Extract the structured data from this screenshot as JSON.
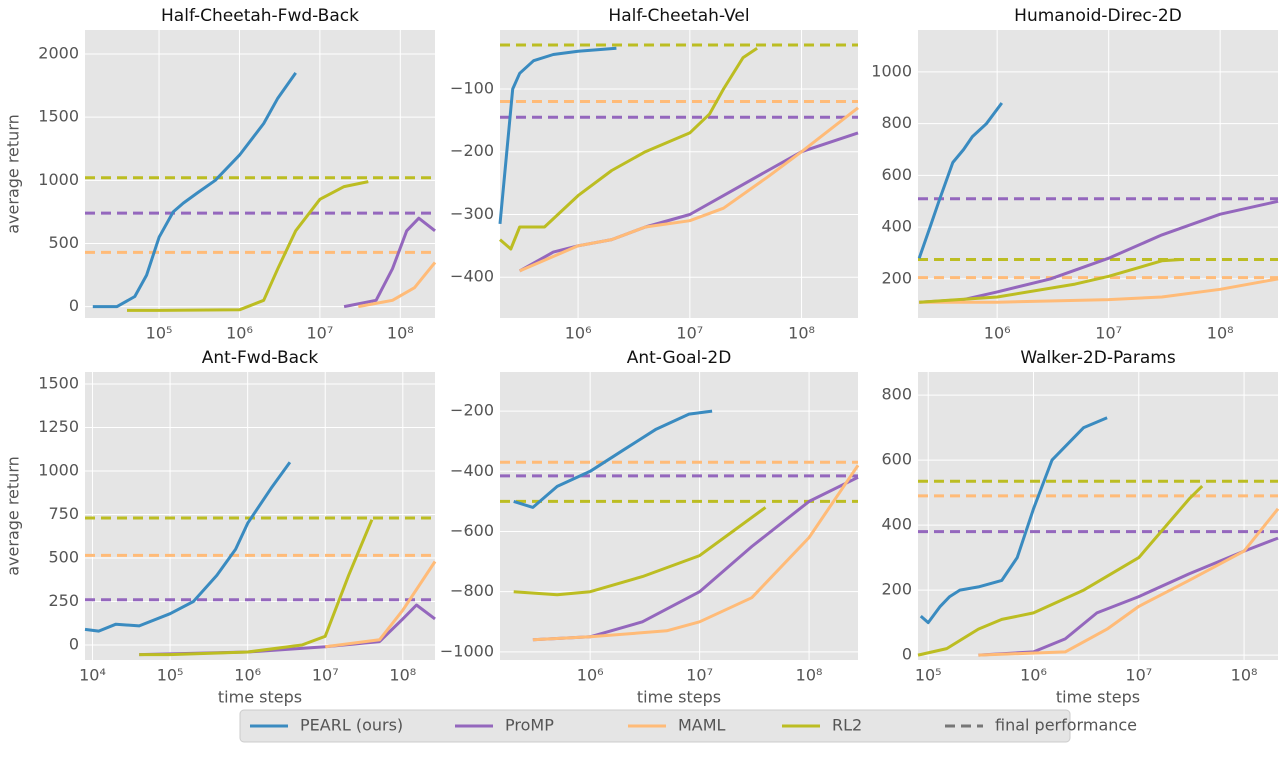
{
  "legend_final": "final performance",
  "chart_data": [
    {
      "type": "line",
      "title": "Half-Cheetah-Fwd-Back",
      "ylabel": "average return",
      "xscale": "log",
      "xlim": [
        12000,
        270000000
      ],
      "ylim": [
        -90,
        2190
      ],
      "xticks": [
        {
          "value": 100000,
          "label": "10⁵"
        },
        {
          "value": 1000000,
          "label": "10⁶"
        },
        {
          "value": 10000000,
          "label": "10⁷"
        },
        {
          "value": 100000000,
          "label": "10⁸"
        }
      ],
      "yticks": [
        0,
        500,
        1000,
        1500,
        2000
      ],
      "grid": true,
      "series": [
        {
          "name": "PEARL (ours)",
          "color": "#3a8bc0",
          "x": [
            15000,
            30000,
            50000,
            70000,
            100000,
            150000,
            200000,
            300000,
            500000,
            1000000,
            2000000,
            3000000,
            5000000
          ],
          "values": [
            0,
            0,
            80,
            250,
            550,
            750,
            820,
            900,
            1000,
            1200,
            1450,
            1650,
            1850
          ]
        },
        {
          "name": "ProMP",
          "color": "#9467bd",
          "x": [
            20000000,
            50000000,
            80000000,
            120000000,
            170000000,
            270000000
          ],
          "values": [
            0,
            50,
            300,
            600,
            700,
            600
          ],
          "final": 740
        },
        {
          "name": "MAML",
          "color": "#ffbb78",
          "x": [
            30000000,
            80000000,
            150000000,
            270000000
          ],
          "values": [
            0,
            50,
            150,
            350
          ],
          "final": 430
        },
        {
          "name": "RL2",
          "color": "#bcbd22",
          "x": [
            40000,
            100000,
            1000000,
            2000000,
            3000000,
            5000000,
            10000000,
            20000000,
            40000000
          ],
          "values": [
            -30,
            -30,
            -25,
            50,
            300,
            600,
            850,
            950,
            990
          ],
          "final": 1020
        }
      ]
    },
    {
      "type": "line",
      "title": "Half-Cheetah-Vel",
      "xscale": "log",
      "xlim": [
        200000,
        320000000
      ],
      "ylim": [
        -465,
        -6
      ],
      "xticks": [
        {
          "value": 1000000,
          "label": "10⁶"
        },
        {
          "value": 10000000,
          "label": "10⁷"
        },
        {
          "value": 100000000,
          "label": "10⁸"
        }
      ],
      "yticks": [
        {
          "value": -400,
          "label": "−400"
        },
        {
          "value": -300,
          "label": "−300"
        },
        {
          "value": -200,
          "label": "−200"
        },
        {
          "value": -100,
          "label": "−100"
        }
      ],
      "grid": true,
      "series": [
        {
          "name": "PEARL (ours)",
          "color": "#3a8bc0",
          "x": [
            200000,
            230000,
            260000,
            300000,
            400000,
            600000,
            1000000,
            2200000
          ],
          "values": [
            -315,
            -200,
            -100,
            -75,
            -55,
            -45,
            -40,
            -35
          ]
        },
        {
          "name": "ProMP",
          "color": "#9467bd",
          "x": [
            300000,
            600000,
            1000000,
            2000000,
            4000000,
            10000000,
            20000000,
            50000000,
            100000000,
            320000000
          ],
          "values": [
            -390,
            -360,
            -350,
            -340,
            -320,
            -300,
            -270,
            -230,
            -200,
            -170
          ],
          "final": -145
        },
        {
          "name": "MAML",
          "color": "#ffbb78",
          "x": [
            300000,
            1000000,
            2000000,
            4000000,
            10000000,
            20000000,
            50000000,
            100000000,
            320000000
          ],
          "values": [
            -390,
            -350,
            -340,
            -320,
            -310,
            -290,
            -240,
            -200,
            -130
          ],
          "final": -120
        },
        {
          "name": "RL2",
          "color": "#bcbd22",
          "x": [
            200000,
            250000,
            300000,
            500000,
            1000000,
            2000000,
            4000000,
            10000000,
            15000000,
            20000000,
            30000000,
            40000000
          ],
          "values": [
            -340,
            -355,
            -320,
            -320,
            -270,
            -230,
            -200,
            -170,
            -140,
            -100,
            -50,
            -35
          ],
          "final": -30
        }
      ]
    },
    {
      "type": "line",
      "title": "Humanoid-Direc-2D",
      "xscale": "log",
      "xlim": [
        195000,
        330000000
      ],
      "ylim": [
        49,
        1162
      ],
      "xticks": [
        {
          "value": 1000000,
          "label": "10⁶"
        },
        {
          "value": 10000000,
          "label": "10⁷"
        },
        {
          "value": 100000000,
          "label": "10⁸"
        }
      ],
      "yticks": [
        200,
        400,
        600,
        800,
        1000
      ],
      "grid": true,
      "series": [
        {
          "name": "PEARL (ours)",
          "color": "#3a8bc0",
          "x": [
            200000,
            250000,
            300000,
            400000,
            500000,
            600000,
            800000,
            1100000
          ],
          "values": [
            280,
            400,
            500,
            650,
            700,
            750,
            800,
            880
          ]
        },
        {
          "name": "ProMP",
          "color": "#9467bd",
          "x": [
            200000,
            500000,
            1000000,
            3000000,
            10000000,
            30000000,
            100000000,
            330000000
          ],
          "values": [
            110,
            120,
            150,
            200,
            280,
            370,
            450,
            500
          ],
          "final": 510
        },
        {
          "name": "MAML",
          "color": "#ffbb78",
          "x": [
            200000,
            1000000,
            10000000,
            30000000,
            100000000,
            330000000
          ],
          "values": [
            110,
            110,
            120,
            130,
            160,
            200
          ],
          "final": 205
        },
        {
          "name": "RL2",
          "color": "#bcbd22",
          "x": [
            200000,
            1000000,
            5000000,
            10000000,
            30000000,
            45000000
          ],
          "values": [
            110,
            130,
            180,
            210,
            270,
            275
          ],
          "final": 275
        }
      ]
    },
    {
      "type": "line",
      "title": "Ant-Fwd-Back",
      "ylabel": "average return",
      "xlabel": "time steps",
      "xscale": "log",
      "xlim": [
        8000,
        260000000
      ],
      "ylim": [
        -86,
        1569
      ],
      "xticks": [
        {
          "value": 10000,
          "label": "10⁴"
        },
        {
          "value": 100000,
          "label": "10⁵"
        },
        {
          "value": 1000000,
          "label": "10⁶"
        },
        {
          "value": 10000000,
          "label": "10⁷"
        },
        {
          "value": 100000000,
          "label": "10⁸"
        }
      ],
      "yticks": [
        0,
        250,
        500,
        750,
        1000,
        1250,
        1500
      ],
      "grid": true,
      "series": [
        {
          "name": "PEARL (ours)",
          "color": "#3a8bc0",
          "x": [
            8000,
            12000,
            20000,
            40000,
            100000,
            200000,
            400000,
            700000,
            1000000,
            2000000,
            3500000
          ],
          "values": [
            90,
            80,
            120,
            110,
            180,
            250,
            400,
            550,
            700,
            900,
            1050
          ]
        },
        {
          "name": "ProMP",
          "color": "#9467bd",
          "x": [
            40000,
            1000000,
            10000000,
            50000000,
            100000000,
            150000000,
            260000000
          ],
          "values": [
            -55,
            -40,
            -10,
            20,
            150,
            230,
            150
          ],
          "final": 260
        },
        {
          "name": "MAML",
          "color": "#ffbb78",
          "x": [
            10000000,
            50000000,
            100000000,
            260000000
          ],
          "values": [
            -10,
            30,
            200,
            480
          ],
          "final": 515
        },
        {
          "name": "RL2",
          "color": "#bcbd22",
          "x": [
            40000,
            100000,
            1000000,
            5000000,
            10000000,
            20000000,
            40000000
          ],
          "values": [
            -55,
            -55,
            -40,
            0,
            50,
            400,
            720
          ],
          "final": 730
        }
      ]
    },
    {
      "type": "line",
      "title": "Ant-Goal-2D",
      "xlabel": "time steps",
      "xscale": "log",
      "xlim": [
        150000,
        280000000
      ],
      "ylim": [
        -1027,
        -70
      ],
      "xticks": [
        {
          "value": 1000000,
          "label": "10⁶"
        },
        {
          "value": 10000000,
          "label": "10⁷"
        },
        {
          "value": 100000000,
          "label": "10⁸"
        }
      ],
      "yticks": [
        {
          "value": -1000,
          "label": "−1000"
        },
        {
          "value": -800,
          "label": "−800"
        },
        {
          "value": -600,
          "label": "−600"
        },
        {
          "value": -400,
          "label": "−400"
        },
        {
          "value": -200,
          "label": "−200"
        }
      ],
      "grid": true,
      "series": [
        {
          "name": "PEARL (ours)",
          "color": "#3a8bc0",
          "x": [
            200000,
            300000,
            500000,
            1000000,
            2000000,
            4000000,
            8000000,
            13000000
          ],
          "values": [
            -500,
            -520,
            -450,
            -400,
            -330,
            -260,
            -210,
            -200
          ]
        },
        {
          "name": "ProMP",
          "color": "#9467bd",
          "x": [
            300000,
            1000000,
            3000000,
            10000000,
            30000000,
            100000000,
            280000000
          ],
          "values": [
            -960,
            -950,
            -900,
            -800,
            -650,
            -500,
            -420
          ],
          "final": -415
        },
        {
          "name": "MAML",
          "color": "#ffbb78",
          "x": [
            300000,
            1000000,
            5000000,
            10000000,
            30000000,
            100000000,
            280000000
          ],
          "values": [
            -960,
            -950,
            -930,
            -900,
            -820,
            -620,
            -380
          ],
          "final": -370
        },
        {
          "name": "RL2",
          "color": "#bcbd22",
          "x": [
            200000,
            500000,
            1000000,
            3000000,
            10000000,
            20000000,
            40000000
          ],
          "values": [
            -800,
            -810,
            -800,
            -750,
            -680,
            -600,
            -520
          ],
          "final": -500
        }
      ]
    },
    {
      "type": "line",
      "title": "Walker-2D-Params",
      "xlabel": "time steps",
      "xscale": "log",
      "xlim": [
        80000,
        210000000
      ],
      "ylim": [
        -15,
        871
      ],
      "xticks": [
        {
          "value": 100000,
          "label": "10⁵"
        },
        {
          "value": 1000000,
          "label": "10⁶"
        },
        {
          "value": 10000000,
          "label": "10⁷"
        },
        {
          "value": 100000000,
          "label": "10⁸"
        }
      ],
      "yticks": [
        0,
        200,
        400,
        600,
        800
      ],
      "grid": true,
      "series": [
        {
          "name": "PEARL (ours)",
          "color": "#3a8bc0",
          "x": [
            85000,
            100000,
            130000,
            160000,
            200000,
            300000,
            500000,
            700000,
            1000000,
            1500000,
            3000000,
            5000000
          ],
          "values": [
            120,
            100,
            150,
            180,
            200,
            210,
            230,
            300,
            450,
            600,
            700,
            730
          ]
        },
        {
          "name": "ProMP",
          "color": "#9467bd",
          "x": [
            300000,
            1000000,
            2000000,
            4000000,
            10000000,
            30000000,
            100000000,
            210000000
          ],
          "values": [
            0,
            10,
            50,
            130,
            180,
            250,
            320,
            360
          ],
          "final": 380
        },
        {
          "name": "MAML",
          "color": "#ffbb78",
          "x": [
            300000,
            2000000,
            5000000,
            10000000,
            30000000,
            100000000,
            210000000
          ],
          "values": [
            0,
            10,
            80,
            150,
            230,
            320,
            450
          ],
          "final": 490
        },
        {
          "name": "RL2",
          "color": "#bcbd22",
          "x": [
            80000,
            150000,
            300000,
            500000,
            1000000,
            3000000,
            10000000,
            30000000,
            40000000
          ],
          "values": [
            0,
            20,
            80,
            110,
            130,
            200,
            300,
            480,
            520
          ],
          "final": 535
        }
      ]
    }
  ]
}
